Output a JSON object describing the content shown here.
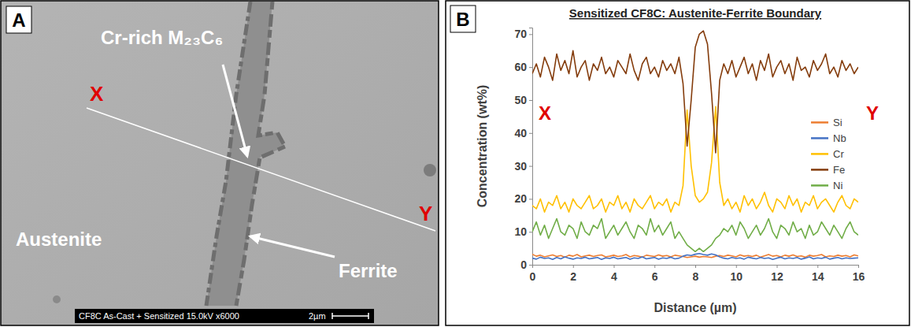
{
  "micrograph": {
    "panel_label": "A",
    "labels": {
      "carbide": "Cr-rich M₂₃C₆",
      "start": "X",
      "end": "Y",
      "matrix": "Austenite",
      "band": "Ferrite"
    },
    "info_bar": "CF8C As-Cast + Sensitized 15.0kV x6000",
    "scale_bar": "2µm"
  },
  "chart_data": {
    "type": "line",
    "panel_label": "B",
    "title": "Sensitized CF8C: Austenite-Ferrite Boundary",
    "x_label": "Distance (µm)",
    "y_label": "Concentration (wt%)",
    "annotations": [
      "X",
      "Y"
    ],
    "x": [
      0,
      0.2,
      0.4,
      0.6,
      0.8,
      1,
      1.2,
      1.4,
      1.6,
      1.8,
      2,
      2.2,
      2.4,
      2.6,
      2.8,
      3,
      3.2,
      3.4,
      3.6,
      3.8,
      4,
      4.2,
      4.4,
      4.6,
      4.8,
      5,
      5.2,
      5.4,
      5.6,
      5.8,
      6,
      6.2,
      6.4,
      6.6,
      6.8,
      7,
      7.2,
      7.4,
      7.6,
      7.8,
      8,
      8.2,
      8.4,
      8.6,
      8.8,
      9,
      9.2,
      9.4,
      9.6,
      9.8,
      10,
      10.2,
      10.4,
      10.6,
      10.8,
      11,
      11.2,
      11.4,
      11.6,
      11.8,
      12,
      12.2,
      12.4,
      12.6,
      12.8,
      13,
      13.2,
      13.4,
      13.6,
      13.8,
      14,
      14.2,
      14.4,
      14.6,
      14.8,
      15,
      15.2,
      15.4,
      15.6,
      15.8,
      16
    ],
    "series": [
      {
        "name": "Si",
        "color": "#ed7d31",
        "values": [
          3.2,
          2.6,
          2.9,
          2.4,
          2.7,
          3.0,
          2.5,
          2.8,
          2.3,
          2.9,
          2.6,
          3.1,
          2.4,
          2.7,
          2.9,
          2.5,
          2.8,
          3.0,
          2.4,
          2.6,
          2.9,
          2.5,
          2.7,
          3.1,
          2.4,
          2.8,
          2.6,
          2.3,
          2.9,
          2.7,
          2.5,
          3.0,
          2.6,
          2.8,
          2.4,
          2.9,
          2.7,
          2.5,
          2.2,
          2.4,
          2.6,
          2.3,
          2.5,
          2.4,
          2.2,
          2.6,
          2.8,
          2.5,
          2.9,
          2.7,
          2.4,
          3.0,
          2.6,
          2.8,
          2.5,
          2.9,
          2.3,
          2.7,
          3.1,
          2.6,
          2.8,
          2.4,
          2.9,
          2.6,
          3.0,
          2.5,
          2.7,
          2.3,
          2.9,
          2.6,
          2.8,
          3.1,
          2.4,
          2.7,
          2.5,
          2.9,
          2.6,
          2.8,
          2.4,
          3.0,
          2.7
        ]
      },
      {
        "name": "Nb",
        "color": "#4472c4",
        "values": [
          2.0,
          1.7,
          2.3,
          1.9,
          2.1,
          1.6,
          2.2,
          1.8,
          2.4,
          2.0,
          1.7,
          2.1,
          1.9,
          2.3,
          1.8,
          2.0,
          2.2,
          1.6,
          2.1,
          1.9,
          2.3,
          1.8,
          2.0,
          2.2,
          1.7,
          2.1,
          1.9,
          2.4,
          1.8,
          2.0,
          2.2,
          1.7,
          2.1,
          1.9,
          2.3,
          1.8,
          2.0,
          2.6,
          3.0,
          2.8,
          3.2,
          3.4,
          3.1,
          2.9,
          3.3,
          3.0,
          2.4,
          2.0,
          1.8,
          2.2,
          1.9,
          2.1,
          1.7,
          2.3,
          2.0,
          1.8,
          2.2,
          1.9,
          2.1,
          1.6,
          2.0,
          2.3,
          1.8,
          2.1,
          1.9,
          2.2,
          1.7,
          2.0,
          2.4,
          1.8,
          2.1,
          1.9,
          2.3,
          1.7,
          2.0,
          2.2,
          1.8,
          2.1,
          1.9,
          2.0,
          2.1
        ]
      },
      {
        "name": "Cr",
        "color": "#ffc000",
        "values": [
          18,
          17,
          20,
          16,
          19,
          18,
          21,
          17,
          19,
          16,
          20,
          18,
          17,
          19,
          21,
          17,
          18,
          20,
          16,
          19,
          18,
          21,
          17,
          19,
          16,
          20,
          18,
          17,
          19,
          21,
          17,
          19,
          18,
          20,
          16,
          19,
          18,
          24,
          47,
          30,
          21,
          19,
          20,
          22,
          31,
          48,
          25,
          18,
          20,
          17,
          19,
          16,
          21,
          18,
          20,
          17,
          19,
          22,
          18,
          16,
          20,
          19,
          17,
          21,
          18,
          20,
          16,
          19,
          18,
          21,
          17,
          19,
          20,
          18,
          16,
          19,
          21,
          18,
          17,
          20,
          19
        ]
      },
      {
        "name": "Fe",
        "color": "#843c0c",
        "values": [
          58,
          61,
          57,
          63,
          60,
          56,
          64,
          59,
          62,
          58,
          65,
          57,
          60,
          62,
          56,
          61,
          59,
          63,
          58,
          60,
          57,
          62,
          60,
          58,
          64,
          59,
          56,
          61,
          63,
          58,
          60,
          57,
          62,
          59,
          61,
          58,
          63,
          55,
          36,
          50,
          66,
          70,
          71,
          67,
          52,
          34,
          56,
          61,
          58,
          62,
          57,
          60,
          63,
          58,
          61,
          56,
          62,
          59,
          64,
          57,
          60,
          62,
          58,
          61,
          56,
          63,
          59,
          60,
          57,
          62,
          59,
          61,
          64,
          58,
          60,
          57,
          62,
          59,
          61,
          58,
          60
        ]
      },
      {
        "name": "Ni",
        "color": "#70ad47",
        "values": [
          10,
          13,
          9,
          12,
          8,
          11,
          14,
          10,
          9,
          12,
          11,
          8,
          13,
          10,
          9,
          12,
          11,
          14,
          8,
          10,
          12,
          9,
          11,
          13,
          10,
          8,
          12,
          11,
          9,
          14,
          10,
          12,
          9,
          11,
          13,
          8,
          10,
          8,
          6,
          5,
          4,
          5,
          4,
          5,
          6,
          8,
          9,
          11,
          10,
          12,
          9,
          13,
          11,
          8,
          10,
          12,
          9,
          11,
          14,
          10,
          8,
          12,
          11,
          9,
          13,
          10,
          11,
          8,
          12,
          9,
          10,
          13,
          11,
          9,
          12,
          10,
          8,
          11,
          13,
          10,
          9
        ]
      }
    ],
    "xlim": [
      0,
      16
    ],
    "xticks": [
      0,
      2,
      4,
      6,
      8,
      10,
      12,
      14,
      16
    ],
    "ylim": [
      0,
      72
    ],
    "yticks": [
      0,
      10,
      20,
      30,
      40,
      50,
      60,
      70
    ],
    "legend": "right"
  }
}
